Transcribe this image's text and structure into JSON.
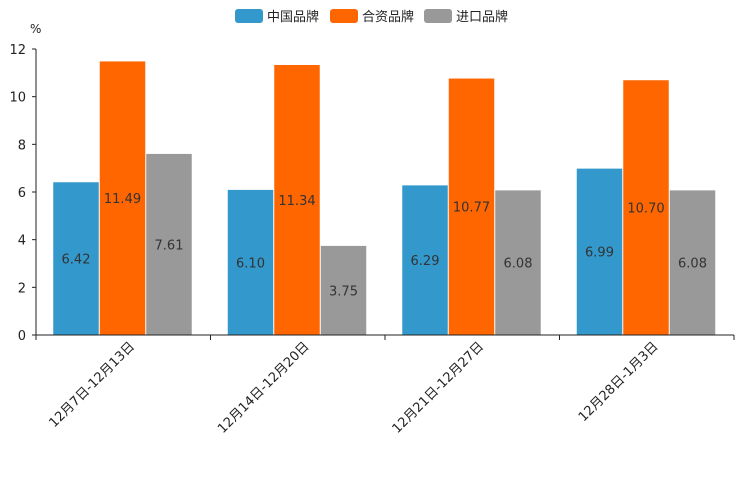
{
  "chart_data": {
    "type": "bar",
    "title": "",
    "ylabel": "%",
    "xlabel": "",
    "ylim": [
      0,
      12
    ],
    "yticks": [
      0,
      2,
      4,
      6,
      8,
      10,
      12
    ],
    "categories": [
      "12月7日-12月13日",
      "12月14日-12月20日",
      "12月21日-12月27日",
      "12月28日-1月3日"
    ],
    "series": [
      {
        "name": "中国品牌",
        "color": "#3399cc",
        "values": [
          6.42,
          6.1,
          6.29,
          6.99
        ]
      },
      {
        "name": "合资品牌",
        "color": "#ff6600",
        "values": [
          11.49,
          11.34,
          10.77,
          10.7
        ]
      },
      {
        "name": "进口品牌",
        "color": "#999999",
        "values": [
          7.61,
          3.75,
          6.08,
          6.08
        ]
      }
    ],
    "legend_position": "top-center",
    "grid": false
  }
}
